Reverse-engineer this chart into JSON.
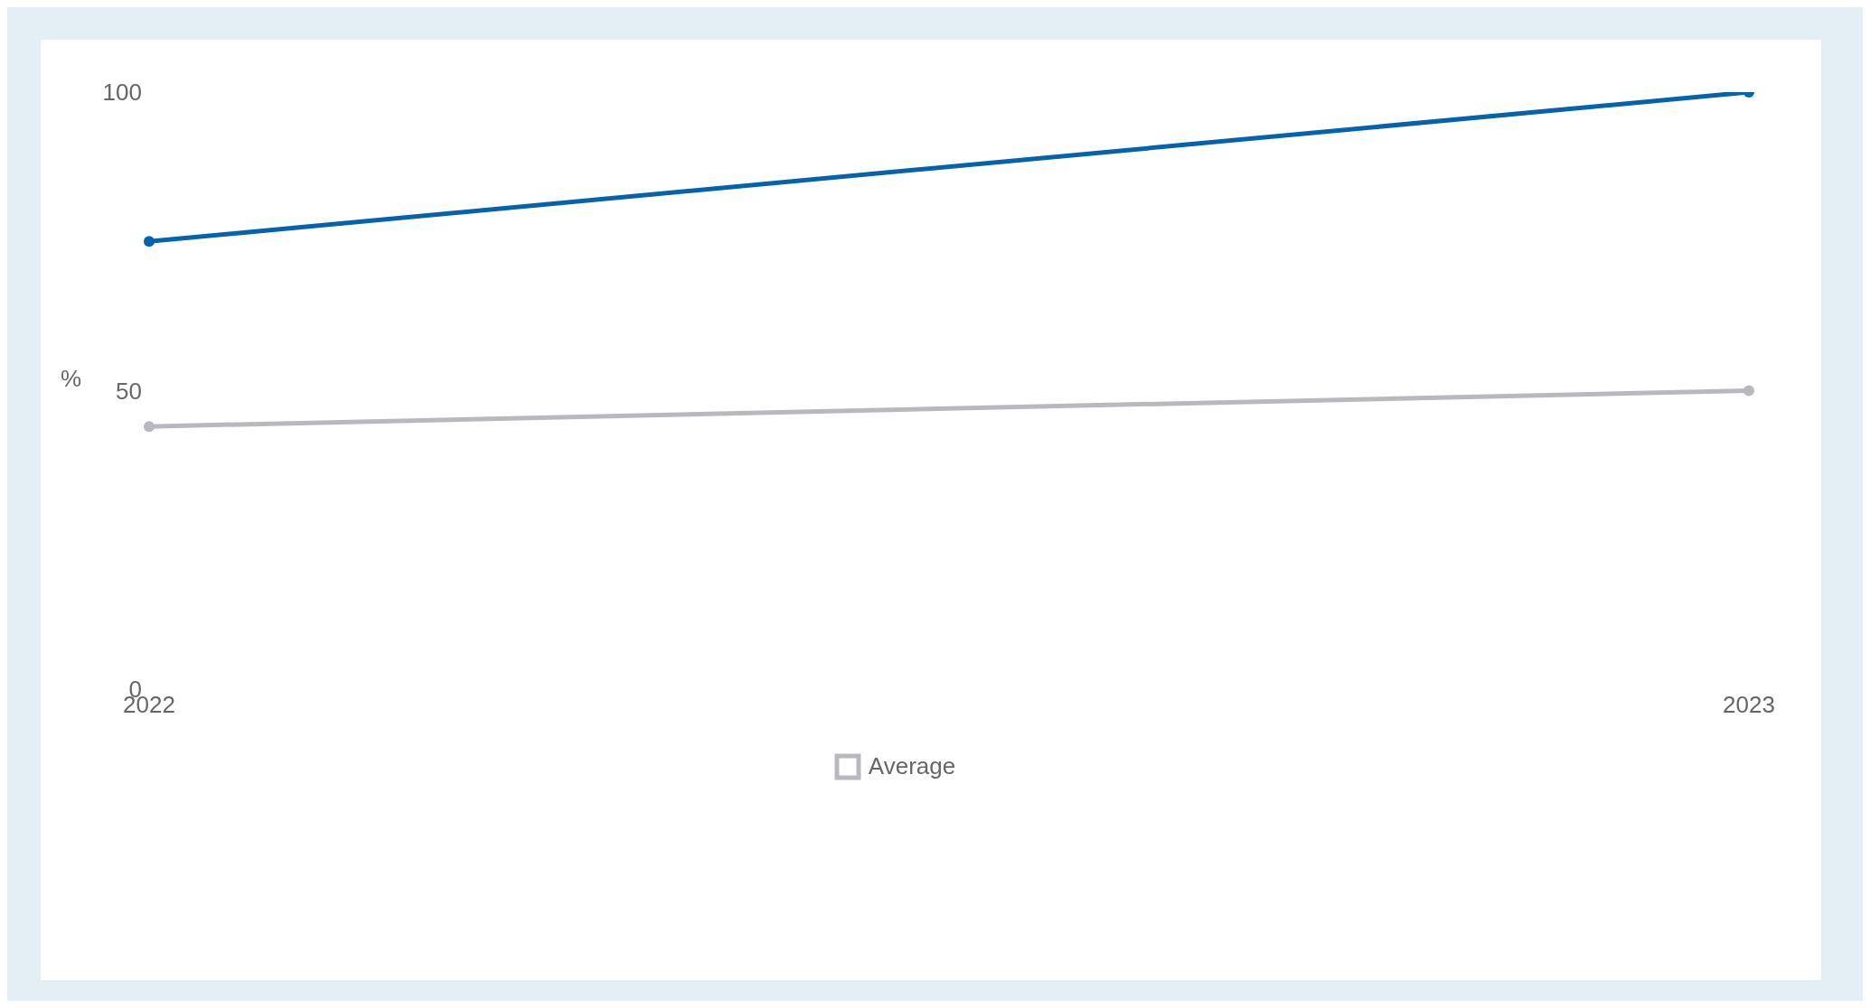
{
  "chart_data": {
    "type": "line",
    "ylabel": "%",
    "categories": [
      "2022",
      "2023"
    ],
    "series": [
      {
        "color": "#0563ad",
        "values": [
          75,
          100
        ]
      },
      {
        "name": "Average",
        "color": "#b9b8be",
        "values": [
          44,
          50
        ]
      }
    ],
    "ylim": [
      0,
      100
    ],
    "yticks": [
      0,
      50,
      100
    ],
    "grid": false,
    "legend": "bottom",
    "marker": "circle",
    "line_style": "solid"
  }
}
